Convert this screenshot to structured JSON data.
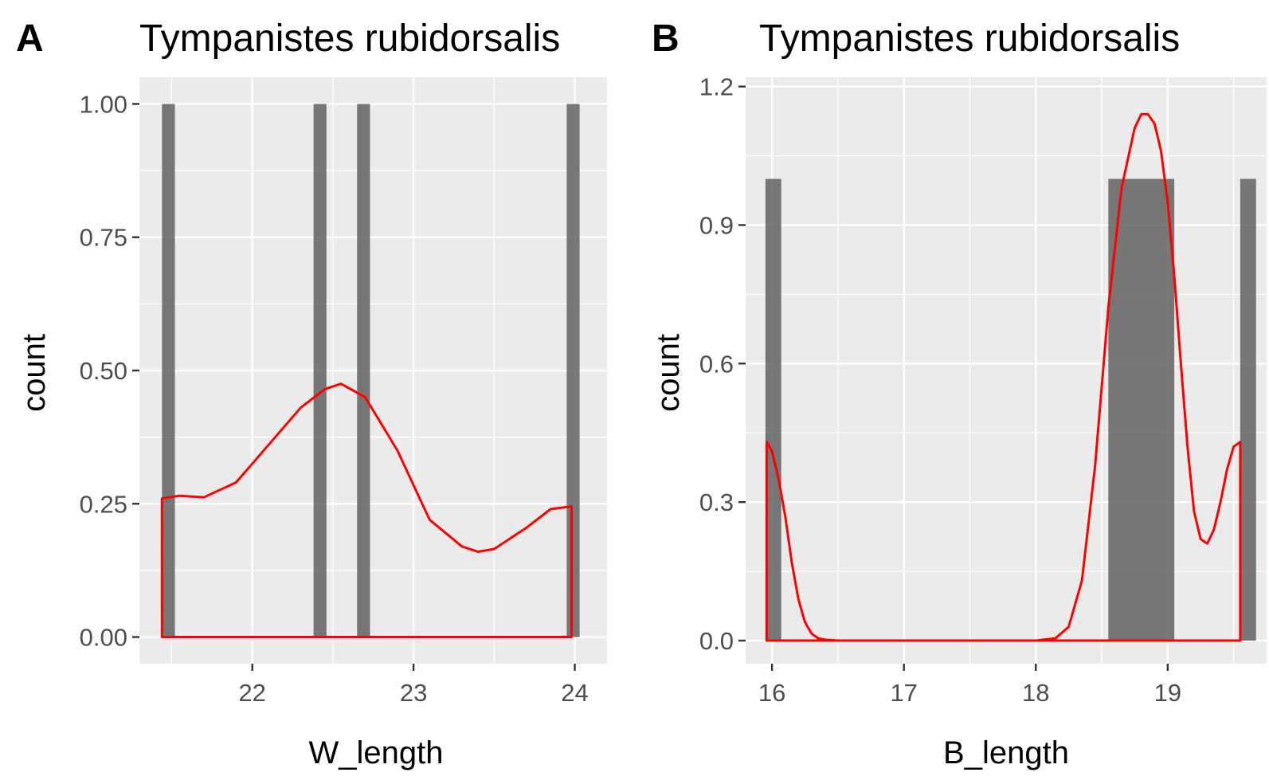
{
  "colors": {
    "panel_background": "#ebebeb",
    "grid": "#ffffff",
    "bar_fill": "#595959",
    "density_line": "#ff0000"
  },
  "chart_data": [
    {
      "tag": "A",
      "type": "bar",
      "title": "Tympanistes rubidorsalis",
      "xlabel": "W_length",
      "ylabel": "count",
      "xlim": [
        21.3,
        24.2
      ],
      "ylim": [
        -0.05,
        1.05
      ],
      "x_ticks": [
        22,
        23,
        24
      ],
      "y_ticks": [
        0.0,
        0.25,
        0.5,
        0.75,
        1.0
      ],
      "x_tick_labels": [
        "22",
        "23",
        "24"
      ],
      "y_tick_labels": [
        "0.00",
        "0.25",
        "0.50",
        "0.75",
        "1.00"
      ],
      "grid": true,
      "bars": [
        {
          "xmin": 21.44,
          "xmax": 21.52,
          "count": 1
        },
        {
          "xmin": 22.38,
          "xmax": 22.46,
          "count": 1
        },
        {
          "xmin": 22.65,
          "xmax": 22.73,
          "count": 1
        },
        {
          "xmin": 23.95,
          "xmax": 24.03,
          "count": 1
        }
      ],
      "density": {
        "x": [
          21.44,
          21.55,
          21.7,
          21.9,
          22.1,
          22.3,
          22.45,
          22.55,
          22.7,
          22.9,
          23.1,
          23.3,
          23.4,
          23.5,
          23.7,
          23.85,
          23.98
        ],
        "y": [
          0.26,
          0.265,
          0.262,
          0.29,
          0.36,
          0.43,
          0.465,
          0.475,
          0.45,
          0.35,
          0.22,
          0.17,
          0.16,
          0.165,
          0.205,
          0.24,
          0.245
        ]
      }
    },
    {
      "tag": "B",
      "type": "bar",
      "title": "Tympanistes rubidorsalis",
      "xlabel": "B_length",
      "ylabel": "count",
      "xlim": [
        15.8,
        19.75
      ],
      "ylim": [
        -0.05,
        1.22
      ],
      "x_ticks": [
        16,
        17,
        18,
        19
      ],
      "y_ticks": [
        0.0,
        0.3,
        0.6,
        0.9,
        1.2
      ],
      "x_tick_labels": [
        "16",
        "17",
        "18",
        "19"
      ],
      "y_tick_labels": [
        "0.0",
        "0.3",
        "0.6",
        "0.9",
        "1.2"
      ],
      "grid": true,
      "bars": [
        {
          "xmin": 15.95,
          "xmax": 16.07,
          "count": 1
        },
        {
          "xmin": 18.55,
          "xmax": 19.05,
          "count": 1
        },
        {
          "xmin": 19.55,
          "xmax": 19.67,
          "count": 1
        }
      ],
      "density": {
        "x": [
          15.96,
          16.0,
          16.05,
          16.1,
          16.15,
          16.2,
          16.25,
          16.3,
          16.35,
          16.4,
          16.5,
          17.0,
          17.5,
          18.0,
          18.15,
          18.25,
          18.35,
          18.45,
          18.55,
          18.65,
          18.75,
          18.8,
          18.85,
          18.9,
          18.95,
          19.0,
          19.05,
          19.1,
          19.15,
          19.2,
          19.25,
          19.3,
          19.35,
          19.4,
          19.45,
          19.5,
          19.55
        ],
        "y": [
          0.43,
          0.41,
          0.35,
          0.27,
          0.17,
          0.09,
          0.04,
          0.015,
          0.005,
          0.002,
          0.0,
          0.0,
          0.0,
          0.0,
          0.005,
          0.03,
          0.13,
          0.38,
          0.72,
          0.98,
          1.11,
          1.14,
          1.14,
          1.12,
          1.06,
          0.95,
          0.79,
          0.6,
          0.42,
          0.28,
          0.22,
          0.21,
          0.24,
          0.3,
          0.37,
          0.42,
          0.43
        ]
      }
    }
  ]
}
